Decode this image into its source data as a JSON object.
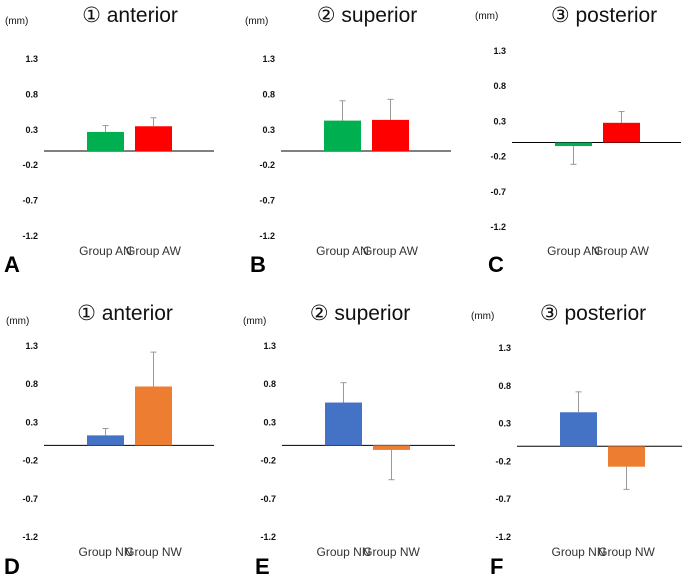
{
  "colors": {
    "green": "#00b050",
    "red": "#ff0000",
    "blue": "#4472c4",
    "orange": "#ed7d31"
  },
  "chart_data": [
    {
      "type": "bar",
      "panel": "A",
      "title": "① anterior",
      "unit": "(mm)",
      "ylim": [
        -1.2,
        1.3
      ],
      "yticks": [
        "1.3",
        "0.8",
        "0.3",
        "-0.2",
        "-0.7",
        "-1.2"
      ],
      "categories": [
        "Group AN",
        "Group AW"
      ],
      "values": [
        0.27,
        0.35
      ],
      "errors": [
        0.09,
        0.12
      ],
      "bar_colors": [
        "#00b050",
        "#ff0000"
      ]
    },
    {
      "type": "bar",
      "panel": "B",
      "title": "② superior",
      "unit": "(mm)",
      "ylim": [
        -1.2,
        1.3
      ],
      "yticks": [
        "1.3",
        "0.8",
        "0.3",
        "-0.2",
        "-0.7",
        "-1.2"
      ],
      "categories": [
        "Group AN",
        "Group AW"
      ],
      "values": [
        0.43,
        0.44
      ],
      "errors": [
        0.28,
        0.29
      ],
      "bar_colors": [
        "#00b050",
        "#ff0000"
      ]
    },
    {
      "type": "bar",
      "panel": "C",
      "title": "③ posterior",
      "unit": "(mm)",
      "ylim": [
        -1.2,
        1.3
      ],
      "yticks": [
        "1.3",
        "0.8",
        "0.3",
        "-0.2",
        "-0.7",
        "-1.2"
      ],
      "categories": [
        "Group AN",
        "Group AW"
      ],
      "values": [
        -0.05,
        0.28
      ],
      "errors": [
        0.26,
        0.16
      ],
      "bar_colors": [
        "#00b050",
        "#ff0000"
      ]
    },
    {
      "type": "bar",
      "panel": "D",
      "title": "① anterior",
      "unit": "(mm)",
      "ylim": [
        -1.2,
        1.3
      ],
      "yticks": [
        "1.3",
        "0.8",
        "0.3",
        "-0.2",
        "-0.7",
        "-1.2"
      ],
      "categories": [
        "Group NN",
        "Group NW"
      ],
      "values": [
        0.13,
        0.77
      ],
      "errors": [
        0.09,
        0.45
      ],
      "bar_colors": [
        "#4472c4",
        "#ed7d31"
      ]
    },
    {
      "type": "bar",
      "panel": "E",
      "title": "② superior",
      "unit": "(mm)",
      "ylim": [
        -1.2,
        1.3
      ],
      "yticks": [
        "1.3",
        "0.8",
        "0.3",
        "-0.2",
        "-0.7",
        "-1.2"
      ],
      "categories": [
        "Group NN",
        "Group NW"
      ],
      "values": [
        0.56,
        -0.06
      ],
      "errors": [
        0.26,
        0.39
      ],
      "bar_colors": [
        "#4472c4",
        "#ed7d31"
      ]
    },
    {
      "type": "bar",
      "panel": "F",
      "title": "③ posterior",
      "unit": "(mm)",
      "ylim": [
        -1.2,
        1.3
      ],
      "yticks": [
        "1.3",
        "0.8",
        "0.3",
        "-0.2",
        "-0.7",
        "-1.2"
      ],
      "categories": [
        "Group NN",
        "Group NW"
      ],
      "values": [
        0.45,
        -0.27
      ],
      "errors": [
        0.27,
        0.3
      ],
      "bar_colors": [
        "#4472c4",
        "#ed7d31"
      ]
    }
  ]
}
